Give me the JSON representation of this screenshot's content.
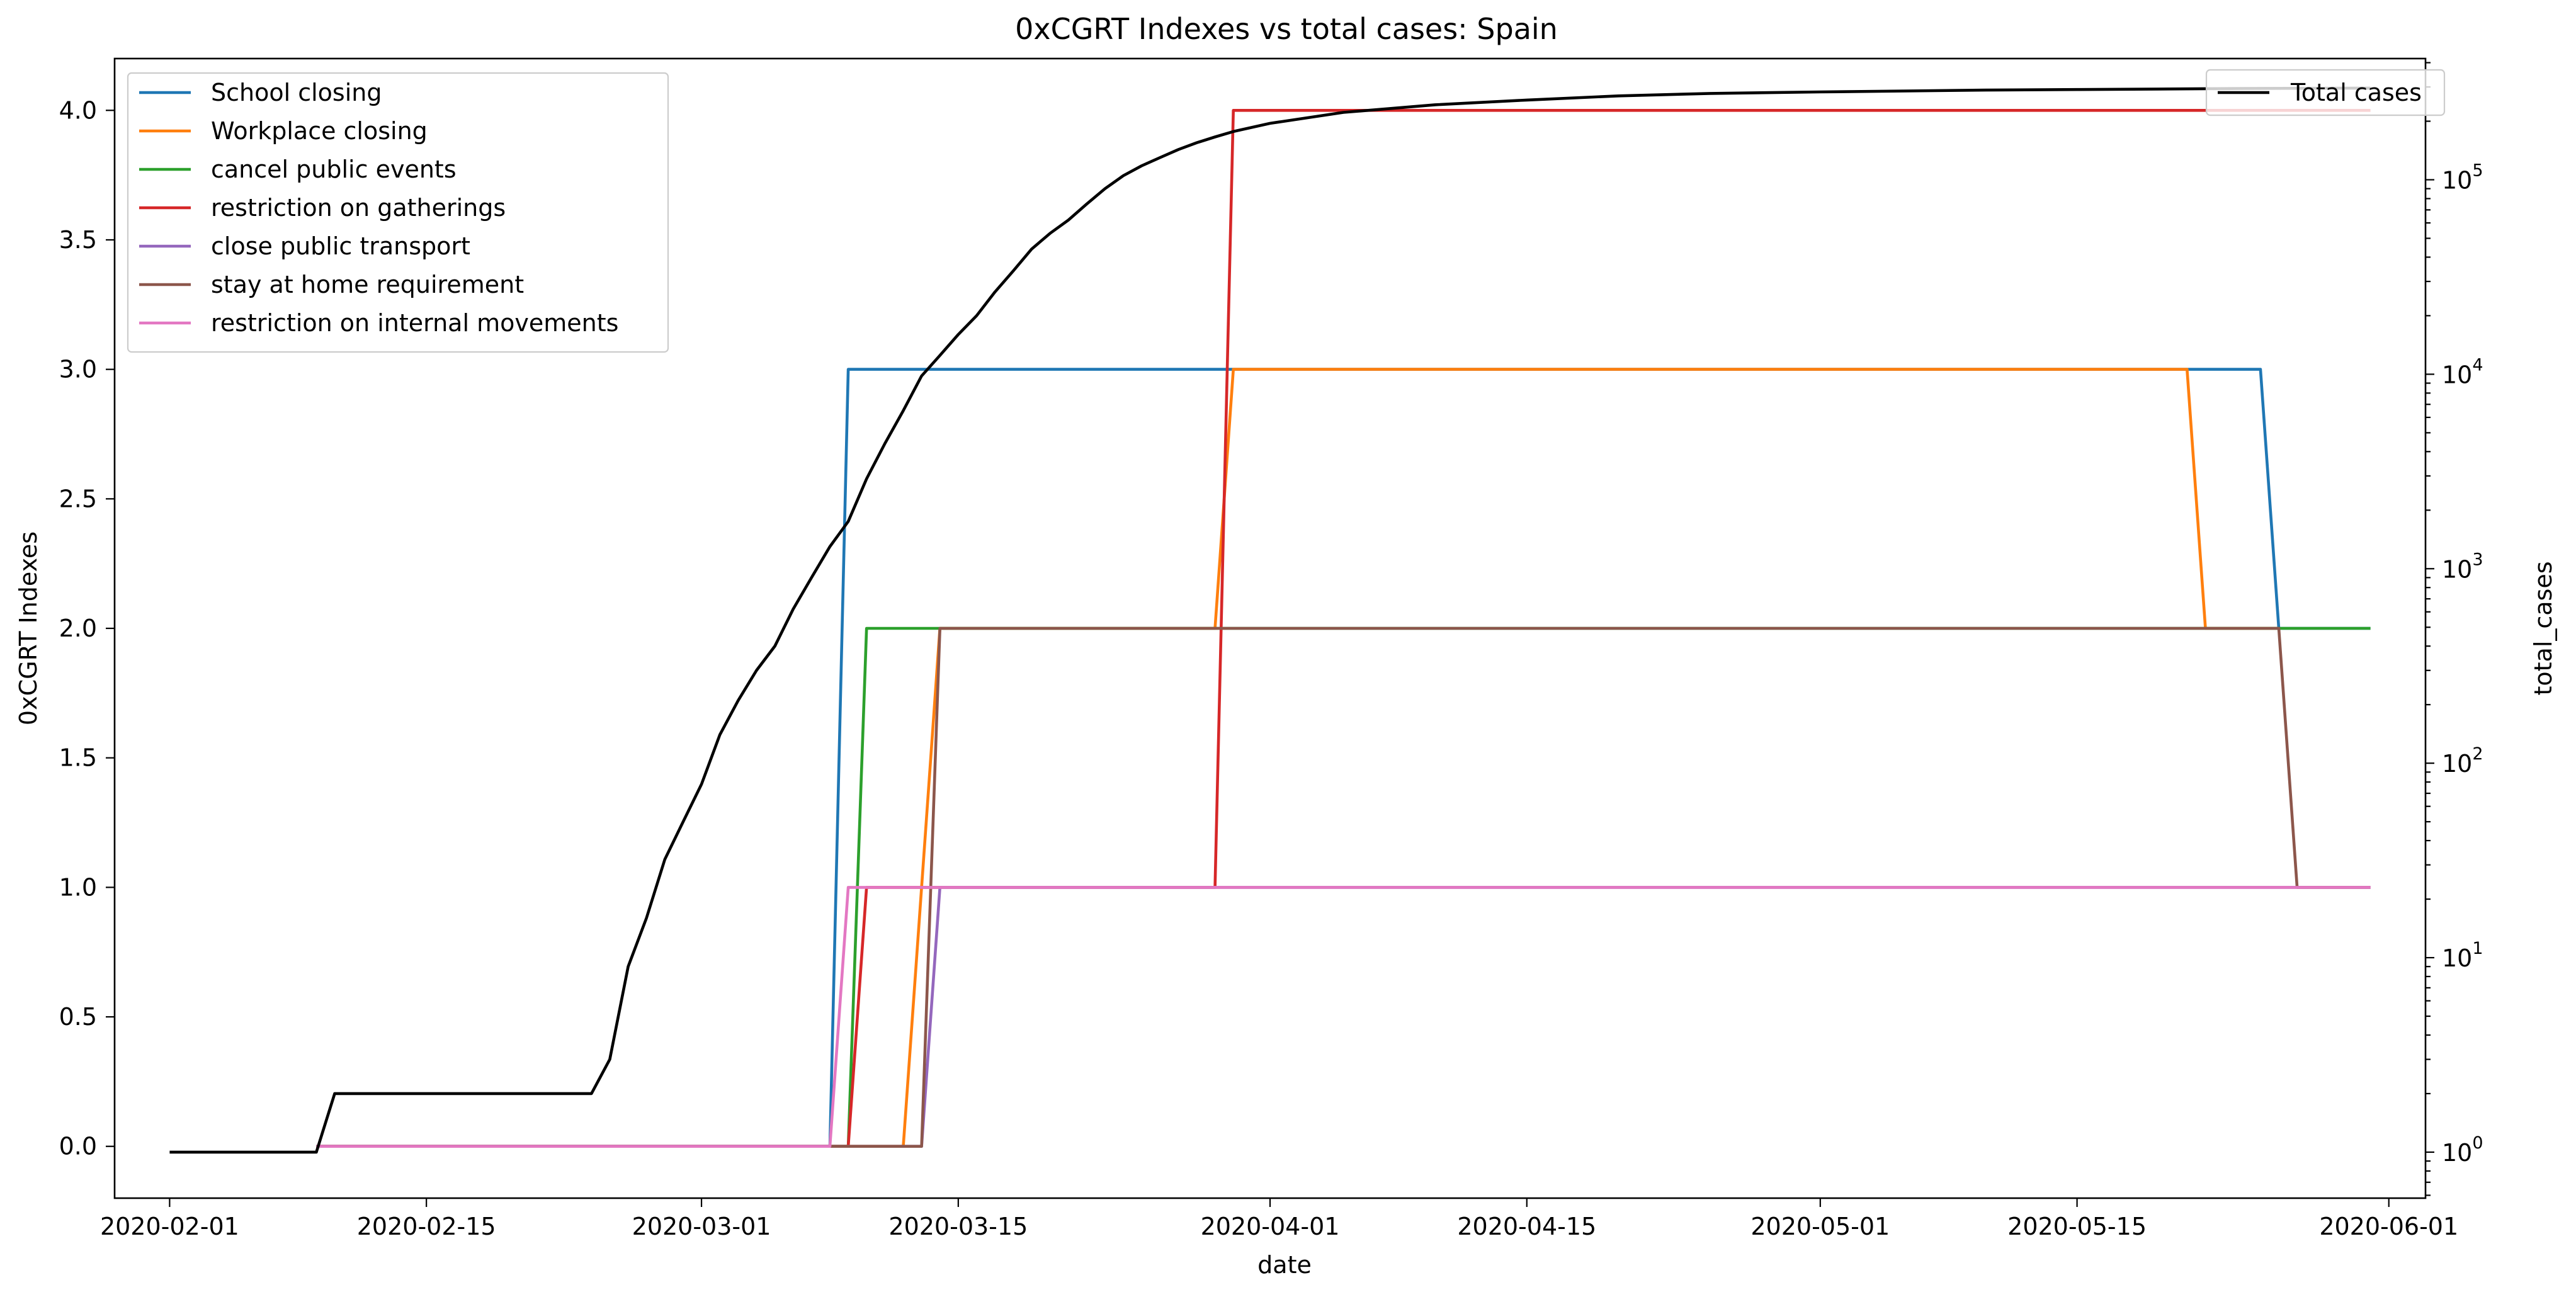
{
  "chart_data": {
    "type": "line",
    "title": "0xCGRT Indexes vs total cases:  Spain",
    "xlabel": "date",
    "ylabel": "0xCGRT Indexes",
    "ylabel_right": "total_cases",
    "x_range": [
      "2020-01-29",
      "2020-06-03"
    ],
    "x_ticks": [
      "2020-02-01",
      "2020-02-15",
      "2020-03-01",
      "2020-03-15",
      "2020-04-01",
      "2020-04-15",
      "2020-05-01",
      "2020-05-15",
      "2020-06-01"
    ],
    "ylim": [
      -0.2,
      4.2
    ],
    "y_ticks": [
      "0.0",
      "0.5",
      "1.0",
      "1.5",
      "2.0",
      "2.5",
      "3.0",
      "3.5",
      "4.0"
    ],
    "y2_scale": "log",
    "y2lim": [
      0.58,
      420000
    ],
    "y2_ticks": [
      {
        "base": "10",
        "exp": "0",
        "value": 1
      },
      {
        "base": "10",
        "exp": "1",
        "value": 10
      },
      {
        "base": "10",
        "exp": "2",
        "value": 100
      },
      {
        "base": "10",
        "exp": "3",
        "value": 1000
      },
      {
        "base": "10",
        "exp": "4",
        "value": 10000
      },
      {
        "base": "10",
        "exp": "5",
        "value": 100000
      }
    ],
    "grid": false,
    "legend_position": "upper left",
    "legend2_position": "upper right",
    "series": [
      {
        "name": "School closing",
        "color": "#1f77b4",
        "axis": "left",
        "points": [
          [
            "2020-02-09",
            0
          ],
          [
            "2020-03-08",
            0
          ],
          [
            "2020-03-09",
            3
          ],
          [
            "2020-05-25",
            3
          ],
          [
            "2020-05-26",
            2
          ],
          [
            "2020-05-31",
            2
          ]
        ]
      },
      {
        "name": "Workplace closing",
        "color": "#ff7f0e",
        "axis": "left",
        "points": [
          [
            "2020-02-09",
            0
          ],
          [
            "2020-03-12",
            0
          ],
          [
            "2020-03-13",
            1
          ],
          [
            "2020-03-14",
            2
          ],
          [
            "2020-03-29",
            2
          ],
          [
            "2020-03-30",
            3
          ],
          [
            "2020-05-21",
            3
          ],
          [
            "2020-05-22",
            2
          ],
          [
            "2020-05-25",
            2
          ],
          [
            "2020-05-26",
            2
          ]
        ]
      },
      {
        "name": "cancel public events",
        "color": "#2ca02c",
        "axis": "left",
        "points": [
          [
            "2020-02-09",
            0
          ],
          [
            "2020-03-09",
            0
          ],
          [
            "2020-03-10",
            2
          ],
          [
            "2020-05-31",
            2
          ]
        ]
      },
      {
        "name": "restriction on gatherings",
        "color": "#d62728",
        "axis": "left",
        "points": [
          [
            "2020-02-09",
            0
          ],
          [
            "2020-03-09",
            0
          ],
          [
            "2020-03-10",
            1
          ],
          [
            "2020-03-29",
            1
          ],
          [
            "2020-03-30",
            4
          ],
          [
            "2020-05-31",
            4
          ]
        ]
      },
      {
        "name": "close public transport",
        "color": "#9467bd",
        "axis": "left",
        "points": [
          [
            "2020-02-09",
            0
          ],
          [
            "2020-03-13",
            0
          ],
          [
            "2020-03-14",
            1
          ],
          [
            "2020-05-31",
            1
          ]
        ]
      },
      {
        "name": "stay at home requirement",
        "color": "#8c564b",
        "axis": "left",
        "points": [
          [
            "2020-02-09",
            0
          ],
          [
            "2020-03-13",
            0
          ],
          [
            "2020-03-14",
            2
          ],
          [
            "2020-05-26",
            2
          ],
          [
            "2020-05-27",
            1
          ],
          [
            "2020-05-31",
            1
          ]
        ]
      },
      {
        "name": "restriction on internal movements",
        "color": "#e377c2",
        "axis": "left",
        "points": [
          [
            "2020-02-09",
            0
          ],
          [
            "2020-03-08",
            0
          ],
          [
            "2020-03-09",
            1
          ],
          [
            "2020-05-31",
            1
          ]
        ]
      },
      {
        "name": "Total cases",
        "color": "#000000",
        "axis": "right",
        "points": [
          [
            "2020-02-01",
            1
          ],
          [
            "2020-02-09",
            1
          ],
          [
            "2020-02-10",
            2
          ],
          [
            "2020-02-24",
            2
          ],
          [
            "2020-02-25",
            3
          ],
          [
            "2020-02-26",
            9
          ],
          [
            "2020-02-27",
            16
          ],
          [
            "2020-02-28",
            32
          ],
          [
            "2020-02-29",
            50
          ],
          [
            "2020-03-01",
            78
          ],
          [
            "2020-03-02",
            140
          ],
          [
            "2020-03-03",
            210
          ],
          [
            "2020-03-04",
            300
          ],
          [
            "2020-03-05",
            400
          ],
          [
            "2020-03-06",
            620
          ],
          [
            "2020-03-07",
            900
          ],
          [
            "2020-03-08",
            1300
          ],
          [
            "2020-03-09",
            1750
          ],
          [
            "2020-03-10",
            2900
          ],
          [
            "2020-03-11",
            4400
          ],
          [
            "2020-03-12",
            6500
          ],
          [
            "2020-03-13",
            9800
          ],
          [
            "2020-03-14",
            12500
          ],
          [
            "2020-03-15",
            16000
          ],
          [
            "2020-03-16",
            20000
          ],
          [
            "2020-03-17",
            26500
          ],
          [
            "2020-03-18",
            34000
          ],
          [
            "2020-03-19",
            44000
          ],
          [
            "2020-03-20",
            53000
          ],
          [
            "2020-03-21",
            62000
          ],
          [
            "2020-03-22",
            75000
          ],
          [
            "2020-03-23",
            90000
          ],
          [
            "2020-03-24",
            105000
          ],
          [
            "2020-03-25",
            118000
          ],
          [
            "2020-03-26",
            130000
          ],
          [
            "2020-03-27",
            143000
          ],
          [
            "2020-03-28",
            155000
          ],
          [
            "2020-03-29",
            166000
          ],
          [
            "2020-03-30",
            177000
          ],
          [
            "2020-04-01",
            195000
          ],
          [
            "2020-04-05",
            222000
          ],
          [
            "2020-04-10",
            243000
          ],
          [
            "2020-04-15",
            257000
          ],
          [
            "2020-04-20",
            270000
          ],
          [
            "2020-04-25",
            278000
          ],
          [
            "2020-05-01",
            283000
          ],
          [
            "2020-05-10",
            289000
          ],
          [
            "2020-05-15",
            291000
          ],
          [
            "2020-05-20",
            293000
          ],
          [
            "2020-05-25",
            295000
          ],
          [
            "2020-05-31",
            296000
          ]
        ]
      }
    ]
  }
}
